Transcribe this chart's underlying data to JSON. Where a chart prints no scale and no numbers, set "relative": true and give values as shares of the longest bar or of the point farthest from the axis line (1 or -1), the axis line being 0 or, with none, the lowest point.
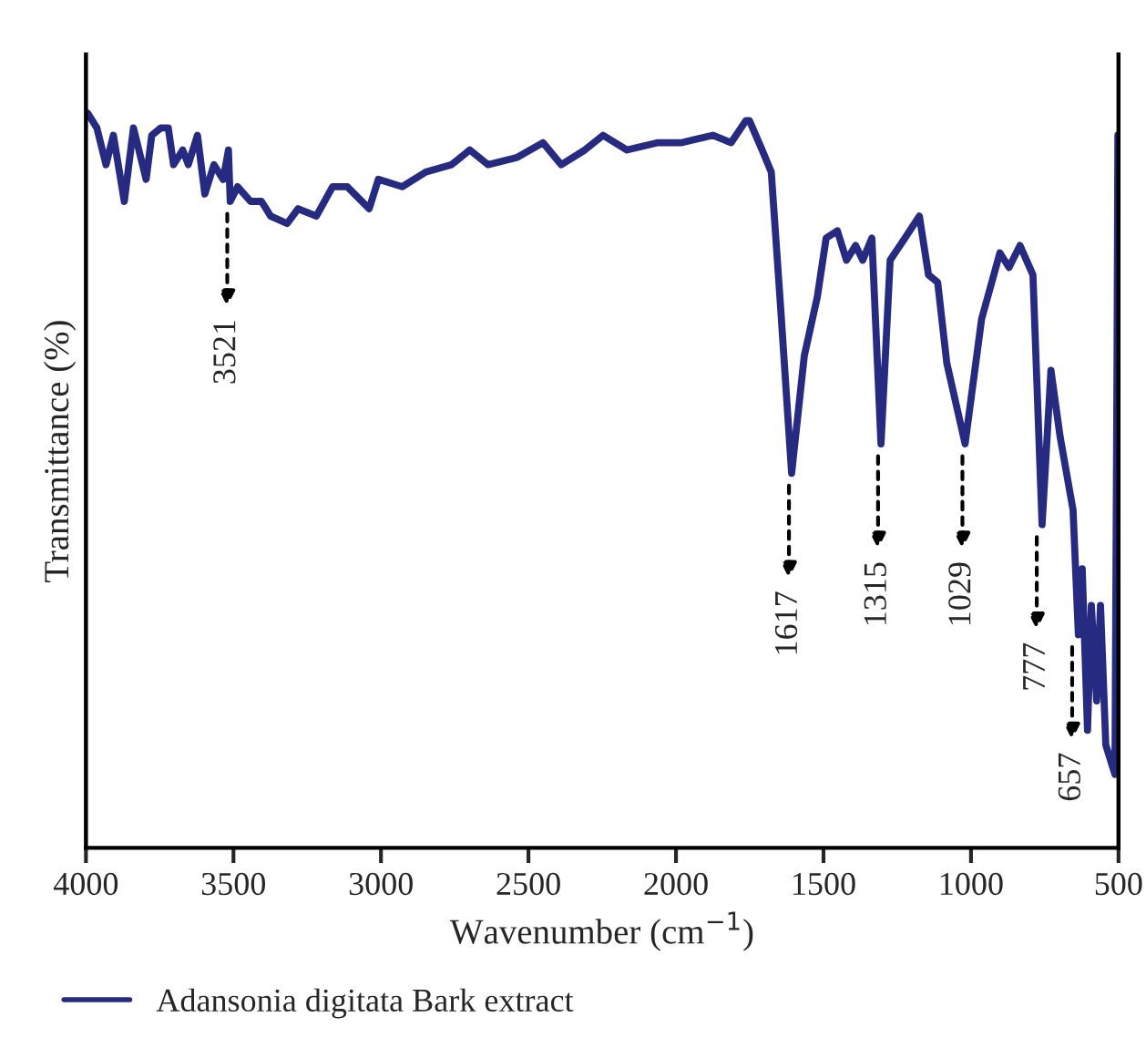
{
  "chart_data": {
    "type": "line",
    "relative": true,
    "xlabel": "Wavenumber (cm$^{−1}$)",
    "ylabel": "Transmittance (%)",
    "xlim": [
      4000,
      500
    ],
    "xticks": [
      4000,
      3500,
      3000,
      2500,
      2000,
      1500,
      1000,
      500
    ],
    "tick_labels": "x",
    "legend": "bottom",
    "grid": false,
    "marker": "none",
    "line_style": "solid",
    "series": [
      {
        "name": "Adansonia digitata Bark extract",
        "color": "#262a80",
        "x": [
          3994,
          3963,
          3932,
          3907,
          3870,
          3839,
          3796,
          3777,
          3746,
          3721,
          3703,
          3672,
          3653,
          3622,
          3597,
          3566,
          3535,
          3517,
          3511,
          3486,
          3442,
          3405,
          3374,
          3318,
          3281,
          3219,
          3164,
          3114,
          3040,
          3009,
          2928,
          2848,
          2761,
          2699,
          2637,
          2538,
          2451,
          2389,
          2309,
          2247,
          2166,
          2061,
          1980,
          1875,
          1813,
          1763,
          1751,
          1708,
          1677,
          1646,
          1608,
          1565,
          1521,
          1491,
          1453,
          1422,
          1391,
          1367,
          1336,
          1305,
          1274,
          1224,
          1175,
          1144,
          1113,
          1082,
          1020,
          964,
          902,
          871,
          834,
          790,
          759,
          729,
          698,
          654,
          636,
          623,
          605,
          592,
          574,
          561,
          543,
          512,
          505,
          502
        ],
        "values": [
          1.0,
          0.98,
          0.93,
          0.97,
          0.88,
          0.98,
          0.91,
          0.97,
          0.98,
          0.98,
          0.93,
          0.95,
          0.93,
          0.97,
          0.89,
          0.93,
          0.91,
          0.95,
          0.88,
          0.9,
          0.88,
          0.88,
          0.86,
          0.85,
          0.87,
          0.86,
          0.9,
          0.9,
          0.87,
          0.91,
          0.9,
          0.92,
          0.93,
          0.95,
          0.93,
          0.94,
          0.96,
          0.93,
          0.95,
          0.97,
          0.95,
          0.96,
          0.96,
          0.97,
          0.96,
          0.99,
          0.99,
          0.95,
          0.92,
          0.74,
          0.51,
          0.67,
          0.75,
          0.83,
          0.84,
          0.8,
          0.82,
          0.8,
          0.83,
          0.55,
          0.8,
          0.83,
          0.86,
          0.78,
          0.77,
          0.66,
          0.55,
          0.72,
          0.81,
          0.79,
          0.82,
          0.78,
          0.44,
          0.65,
          0.56,
          0.46,
          0.29,
          0.38,
          0.16,
          0.33,
          0.2,
          0.33,
          0.14,
          0.1,
          0.66,
          0.97
        ]
      }
    ],
    "annotations": [
      {
        "text": "3521",
        "x": 3521,
        "y": 0.88
      },
      {
        "text": "1617",
        "x": 1617,
        "y": 0.51
      },
      {
        "text": "1315",
        "x": 1315,
        "y": 0.55
      },
      {
        "text": "1029",
        "x": 1029,
        "y": 0.55
      },
      {
        "text": "777",
        "x": 777,
        "y": 0.44
      },
      {
        "text": "657",
        "x": 657,
        "y": 0.29
      }
    ]
  }
}
